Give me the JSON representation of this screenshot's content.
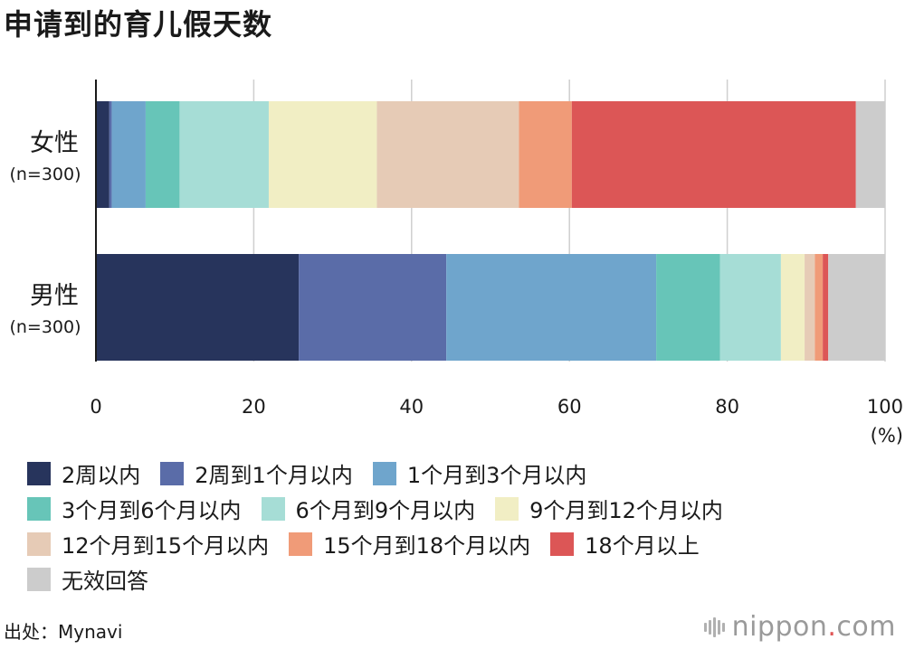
{
  "title": "申请到的育儿假天数",
  "source": "出处：Mynavi",
  "logo": {
    "main": "nippon",
    "dot": ".",
    "suffix": "com"
  },
  "chart_data": {
    "type": "bar",
    "orientation": "horizontal",
    "stacked": true,
    "title": "申请到的育儿假天数",
    "unit_label": "(%)",
    "xlim": [
      0,
      100
    ],
    "x_ticks": [
      "0",
      "20",
      "40",
      "60",
      "80",
      "100"
    ],
    "grid": true,
    "legend_position": "bottom",
    "categories": [
      {
        "name": "女性",
        "sub": "(n=300)"
      },
      {
        "name": "男性",
        "sub": "(n=300)"
      }
    ],
    "series": [
      {
        "name": "2周以内",
        "color": "#27345c",
        "values": [
          1.7,
          25.7
        ]
      },
      {
        "name": "2周到1个月以内",
        "color": "#5a6ca8",
        "values": [
          0.3,
          18.7
        ]
      },
      {
        "name": "1个月到3个月以内",
        "color": "#6fa5cc",
        "values": [
          4.3,
          26.6
        ]
      },
      {
        "name": "3个月到6个月以内",
        "color": "#67c5b8",
        "values": [
          4.3,
          8.1
        ]
      },
      {
        "name": "6个月到9个月以内",
        "color": "#a6ddd6",
        "values": [
          11.3,
          7.7
        ]
      },
      {
        "name": "9个月到12个月以内",
        "color": "#f1eec4",
        "values": [
          13.7,
          3.0
        ]
      },
      {
        "name": "12个月到15个月以内",
        "color": "#e6cbb6",
        "values": [
          18.0,
          1.3
        ]
      },
      {
        "name": "15个月到18个月以内",
        "color": "#f09b78",
        "values": [
          6.7,
          1.0
        ]
      },
      {
        "name": "18个月以上",
        "color": "#dc5656",
        "values": [
          36.0,
          0.7
        ]
      },
      {
        "name": "无效回答",
        "color": "#cccccc",
        "values": [
          3.7,
          7.2
        ]
      }
    ]
  }
}
